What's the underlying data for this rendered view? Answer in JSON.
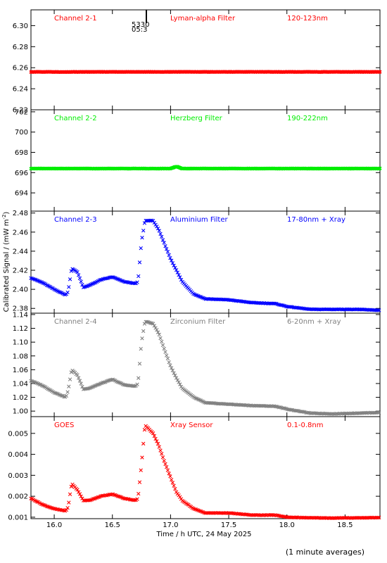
{
  "colors": {
    "red": "#ff0000",
    "green": "#00ee00",
    "blue": "#0000ff",
    "grey": "#808080",
    "black": "#000000"
  },
  "x_axis": {
    "label": "Time / h UTC, 24 May 2025",
    "range": [
      15.8,
      18.8
    ],
    "ticks": [
      "16.0",
      "16.5",
      "17.0",
      "17.5",
      "18.0",
      "18.5"
    ]
  },
  "y_axis_label_main": "Calibrated Signal / (mW m",
  "y_axis_label_sup": "-2",
  "y_axis_label_end": ")",
  "footnote": "(1 minute averages)",
  "annotation": {
    "line1": "5330",
    "line2": "05:3"
  },
  "chart_data": [
    {
      "type": "scatter",
      "channel": "Channel 2-1",
      "filter": "Lyman-alpha Filter",
      "band": "120-123nm",
      "color": "#ff0000",
      "ylim": [
        6.22,
        6.315
      ],
      "y_ticks": [
        "6.22",
        "6.24",
        "6.26",
        "6.28",
        "6.30"
      ],
      "series": [
        {
          "x": [
            15.8,
            16.0,
            16.5,
            17.0,
            17.5,
            18.0,
            18.5,
            18.8
          ],
          "y": [
            6.256,
            6.256,
            6.256,
            6.256,
            6.256,
            6.256,
            6.256,
            6.256
          ]
        }
      ]
    },
    {
      "type": "scatter",
      "channel": "Channel 2-2",
      "filter": "Herzberg Filter",
      "band": "190-222nm",
      "color": "#00ee00",
      "ylim": [
        692.2,
        702.2
      ],
      "y_ticks": [
        "694",
        "696",
        "698",
        "700",
        "702"
      ],
      "series": [
        {
          "x": [
            15.8,
            16.5,
            17.0,
            17.05,
            17.1,
            17.5,
            18.0,
            18.5,
            18.8
          ],
          "y": [
            696.4,
            696.4,
            696.4,
            696.6,
            696.4,
            696.4,
            696.4,
            696.4,
            696.4
          ]
        }
      ]
    },
    {
      "type": "scatter",
      "channel": "Channel 2-3",
      "filter": "Aluminium Filter",
      "band": "17-80nm + Xray",
      "color": "#0000ff",
      "ylim": [
        2.375,
        2.482
      ],
      "y_ticks": [
        "2.38",
        "2.40",
        "2.42",
        "2.44",
        "2.46",
        "2.48"
      ],
      "series": [
        {
          "x": [
            15.8,
            15.9,
            16.0,
            16.1,
            16.12,
            16.15,
            16.2,
            16.25,
            16.3,
            16.4,
            16.5,
            16.6,
            16.7,
            16.72,
            16.75,
            16.78,
            16.85,
            16.9,
            16.95,
            17.0,
            17.05,
            17.1,
            17.2,
            17.3,
            17.5,
            17.7,
            17.9,
            18.0,
            18.2,
            18.4,
            18.6,
            18.8
          ],
          "y": [
            2.412,
            2.407,
            2.4,
            2.394,
            2.398,
            2.422,
            2.418,
            2.402,
            2.404,
            2.41,
            2.413,
            2.408,
            2.406,
            2.408,
            2.45,
            2.472,
            2.472,
            2.462,
            2.447,
            2.432,
            2.42,
            2.408,
            2.395,
            2.39,
            2.389,
            2.386,
            2.385,
            2.382,
            2.379,
            2.379,
            2.379,
            2.378
          ]
        }
      ]
    },
    {
      "type": "scatter",
      "channel": "Channel 2-4",
      "filter": "Zirconium Filter",
      "band": "6-20nm + Xray",
      "color": "#808080",
      "ylim": [
        0.992,
        1.142
      ],
      "y_ticks": [
        "1.00",
        "1.02",
        "1.04",
        "1.06",
        "1.08",
        "1.10",
        "1.12",
        "1.14"
      ],
      "series": [
        {
          "x": [
            15.8,
            15.9,
            16.0,
            16.1,
            16.12,
            16.15,
            16.2,
            16.25,
            16.3,
            16.4,
            16.5,
            16.6,
            16.7,
            16.72,
            16.75,
            16.78,
            16.85,
            16.9,
            16.95,
            17.0,
            17.05,
            17.1,
            17.2,
            17.3,
            17.5,
            17.7,
            17.9,
            18.0,
            18.2,
            18.4,
            18.6,
            18.8
          ],
          "y": [
            1.044,
            1.037,
            1.027,
            1.02,
            1.03,
            1.06,
            1.052,
            1.032,
            1.033,
            1.04,
            1.046,
            1.038,
            1.036,
            1.04,
            1.1,
            1.13,
            1.127,
            1.112,
            1.088,
            1.065,
            1.048,
            1.033,
            1.02,
            1.012,
            1.01,
            1.008,
            1.007,
            1.003,
            0.997,
            0.996,
            0.997,
            0.998
          ]
        }
      ]
    },
    {
      "type": "scatter",
      "channel": "GOES",
      "filter": "Xray Sensor",
      "band": "0.1-0.8nm",
      "color": "#ff0000",
      "ylim": [
        0.00093,
        0.0058
      ],
      "y_ticks": [
        "0.001",
        "0.002",
        "0.003",
        "0.004",
        "0.005"
      ],
      "series": [
        {
          "x": [
            15.8,
            15.9,
            16.0,
            16.1,
            16.12,
            16.15,
            16.2,
            16.25,
            16.3,
            16.4,
            16.5,
            16.6,
            16.7,
            16.72,
            16.75,
            16.78,
            16.85,
            16.9,
            16.95,
            17.0,
            17.05,
            17.1,
            17.2,
            17.3,
            17.5,
            17.7,
            17.9,
            18.0,
            18.2,
            18.4,
            18.6,
            18.8
          ],
          "y": [
            0.0019,
            0.0016,
            0.0014,
            0.0013,
            0.0015,
            0.0026,
            0.0023,
            0.0018,
            0.0018,
            0.002,
            0.0021,
            0.0019,
            0.0018,
            0.0019,
            0.0035,
            0.0054,
            0.005,
            0.0044,
            0.0036,
            0.0029,
            0.0022,
            0.0018,
            0.0014,
            0.0012,
            0.0012,
            0.0011,
            0.0011,
            0.001,
            0.00097,
            0.00096,
            0.00097,
            0.00098
          ]
        }
      ]
    }
  ]
}
